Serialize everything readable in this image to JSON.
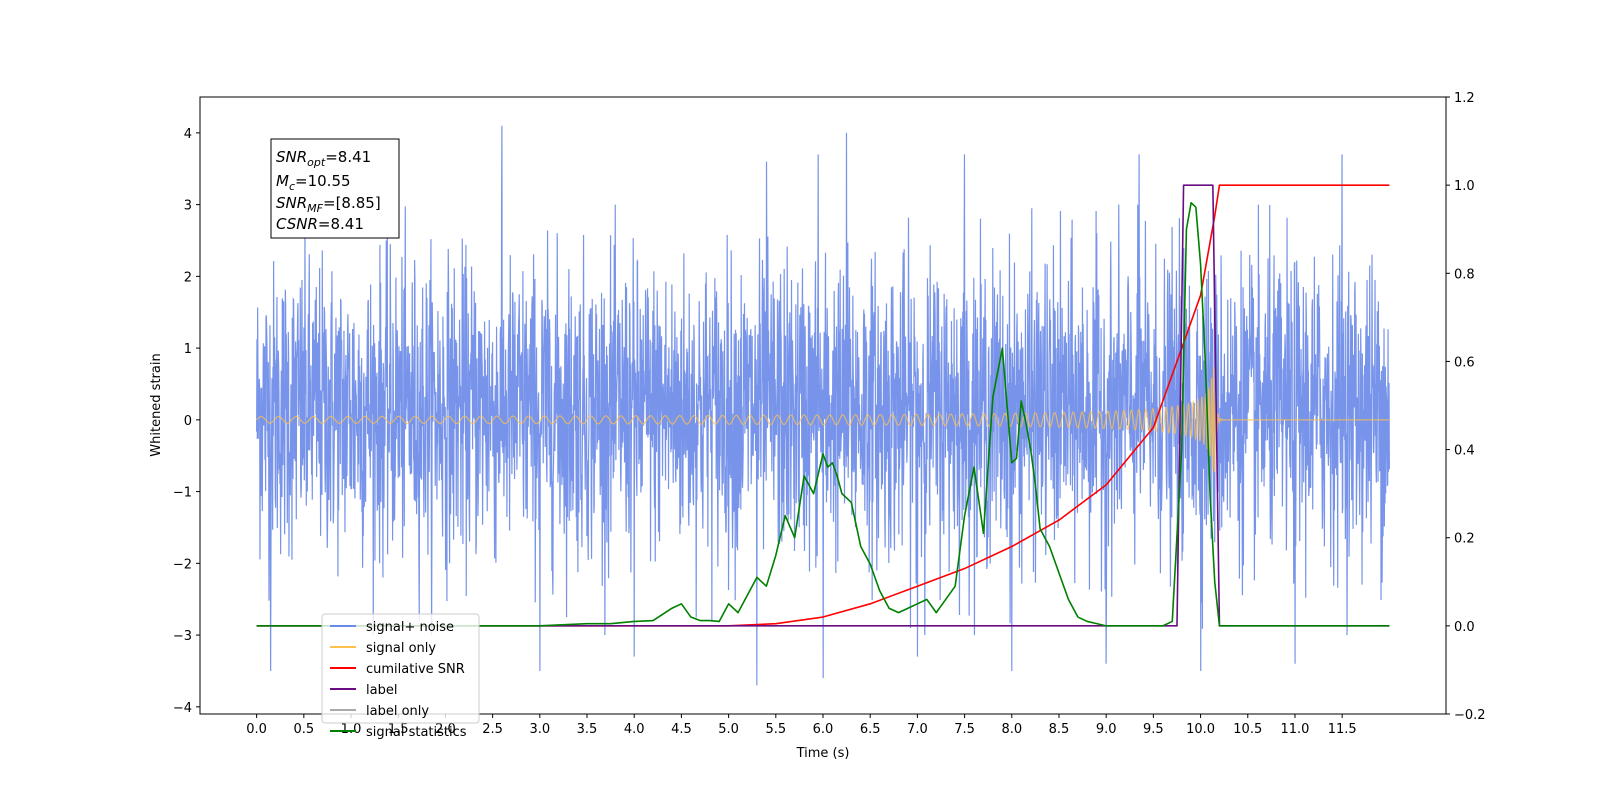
{
  "chart_data": {
    "type": "line",
    "xlabel": "Time (s)",
    "ylabel": "Whitened strain",
    "xlim": [
      -0.6,
      12.6
    ],
    "ylim": [
      -4.1,
      4.5
    ],
    "y2lim": [
      -0.2,
      1.2
    ],
    "x_ticks": [
      0.0,
      0.5,
      1.0,
      1.5,
      2.0,
      2.5,
      3.0,
      3.5,
      4.0,
      4.5,
      5.0,
      5.5,
      6.0,
      6.5,
      7.0,
      7.5,
      8.0,
      8.5,
      9.0,
      9.5,
      10.0,
      10.5,
      11.0,
      11.5
    ],
    "x_tick_labels": [
      "0.0",
      "0.5",
      "1.0",
      "1.5",
      "2.0",
      "2.5",
      "3.0",
      "3.5",
      "4.0",
      "4.5",
      "5.0",
      "5.5",
      "6.0",
      "6.5",
      "7.0",
      "7.5",
      "8.0",
      "8.5",
      "9.0",
      "9.5",
      "10.0",
      "10.5",
      "11.0",
      "11.5"
    ],
    "y_ticks": [
      -4,
      -3,
      -2,
      -1,
      0,
      1,
      2,
      3,
      4
    ],
    "y_tick_labels": [
      "−4",
      "−3",
      "−2",
      "−1",
      "0",
      "1",
      "2",
      "3",
      "4"
    ],
    "y2_ticks": [
      -0.2,
      0.0,
      0.2,
      0.4,
      0.6,
      0.8,
      1.0,
      1.2
    ],
    "y2_tick_labels": [
      "−0.2",
      "0.0",
      "0.2",
      "0.4",
      "0.6",
      "0.8",
      "1.0",
      "1.2"
    ],
    "legend_position": "lower-left",
    "series": [
      {
        "name": "signal+ noise",
        "axis": "left",
        "color": "#6b8be8",
        "kind": "noise",
        "x_range": [
          0.0,
          12.0
        ],
        "typical_amplitude": [
          -1.7,
          2.0
        ],
        "extremes": [
          {
            "x": 0.15,
            "y": -3.5
          },
          {
            "x": 2.6,
            "y": 4.1
          },
          {
            "x": 3.0,
            "y": -3.5
          },
          {
            "x": 4.0,
            "y": -3.3
          },
          {
            "x": 5.3,
            "y": -3.7
          },
          {
            "x": 5.4,
            "y": 3.6
          },
          {
            "x": 5.95,
            "y": 3.7
          },
          {
            "x": 6.0,
            "y": -3.6
          },
          {
            "x": 6.25,
            "y": 4.0
          },
          {
            "x": 7.0,
            "y": -3.3
          },
          {
            "x": 7.5,
            "y": 3.7
          },
          {
            "x": 8.0,
            "y": -3.5
          },
          {
            "x": 9.0,
            "y": -3.4
          },
          {
            "x": 9.35,
            "y": 3.7
          },
          {
            "x": 10.0,
            "y": -3.5
          },
          {
            "x": 11.0,
            "y": -3.4
          },
          {
            "x": 11.5,
            "y": 3.7
          }
        ]
      },
      {
        "name": "signal only",
        "axis": "left",
        "color": "#ffc04d",
        "kind": "chirp",
        "x_range": [
          0.0,
          12.0
        ],
        "merger_time": 10.15,
        "peak_amplitude": 0.75
      },
      {
        "name": "cumilative SNR",
        "axis": "right",
        "color": "#ff0000",
        "x": [
          0.0,
          5.0,
          5.5,
          6.0,
          6.5,
          7.0,
          7.5,
          8.0,
          8.5,
          9.0,
          9.5,
          10.0,
          10.1,
          10.15,
          10.2,
          12.0
        ],
        "y": [
          0.0,
          0.0,
          0.005,
          0.02,
          0.05,
          0.09,
          0.13,
          0.18,
          0.24,
          0.32,
          0.45,
          0.75,
          0.87,
          0.93,
          1.0,
          1.0
        ]
      },
      {
        "name": "label",
        "axis": "right",
        "color": "#6a0d83",
        "x": [
          0.0,
          9.75,
          9.82,
          10.13,
          10.2,
          12.0
        ],
        "y": [
          0.0,
          0.0,
          1.0,
          1.0,
          0.0,
          0.0
        ]
      },
      {
        "name": "label only",
        "axis": "right",
        "color": "#aaaaaa",
        "x": [],
        "y": []
      },
      {
        "name": "signal statistics",
        "axis": "right",
        "color": "#008000",
        "x": [
          0.0,
          3.0,
          3.5,
          3.75,
          4.0,
          4.2,
          4.4,
          4.5,
          4.6,
          4.7,
          4.8,
          4.9,
          5.0,
          5.1,
          5.2,
          5.3,
          5.4,
          5.5,
          5.6,
          5.7,
          5.8,
          5.9,
          6.0,
          6.05,
          6.1,
          6.15,
          6.2,
          6.3,
          6.4,
          6.5,
          6.6,
          6.7,
          6.8,
          6.9,
          7.0,
          7.1,
          7.2,
          7.3,
          7.4,
          7.5,
          7.6,
          7.7,
          7.8,
          7.9,
          8.0,
          8.05,
          8.1,
          8.15,
          8.2,
          8.25,
          8.3,
          8.35,
          8.4,
          8.5,
          8.6,
          8.7,
          8.8,
          8.9,
          9.0,
          9.3,
          9.6,
          9.7,
          9.8,
          9.85,
          9.9,
          9.95,
          10.0,
          10.05,
          10.1,
          10.15,
          10.2,
          12.0
        ],
        "y": [
          0.0,
          0.0,
          0.005,
          0.005,
          0.01,
          0.012,
          0.04,
          0.05,
          0.02,
          0.012,
          0.012,
          0.01,
          0.05,
          0.03,
          0.07,
          0.11,
          0.09,
          0.16,
          0.25,
          0.2,
          0.34,
          0.3,
          0.39,
          0.36,
          0.37,
          0.34,
          0.3,
          0.28,
          0.18,
          0.14,
          0.08,
          0.04,
          0.03,
          0.04,
          0.05,
          0.06,
          0.03,
          0.06,
          0.09,
          0.25,
          0.36,
          0.21,
          0.52,
          0.63,
          0.37,
          0.38,
          0.51,
          0.46,
          0.4,
          0.32,
          0.22,
          0.2,
          0.18,
          0.12,
          0.06,
          0.02,
          0.01,
          0.005,
          0.0,
          0.0,
          0.0,
          0.01,
          0.4,
          0.9,
          0.96,
          0.95,
          0.82,
          0.6,
          0.3,
          0.1,
          0.0,
          0.0
        ]
      }
    ],
    "annotations": {
      "snr_opt_label": "SNR",
      "snr_opt_sub": "opt",
      "snr_opt_value": "=8.41",
      "mc_label": "M",
      "mc_sub": "c",
      "mc_value": "=10.55",
      "snr_mf_label": "SNR",
      "snr_mf_sub": "MF",
      "snr_mf_value": "=[8.85]",
      "csnr_label": "CSNR",
      "csnr_value": "=8.41"
    }
  }
}
